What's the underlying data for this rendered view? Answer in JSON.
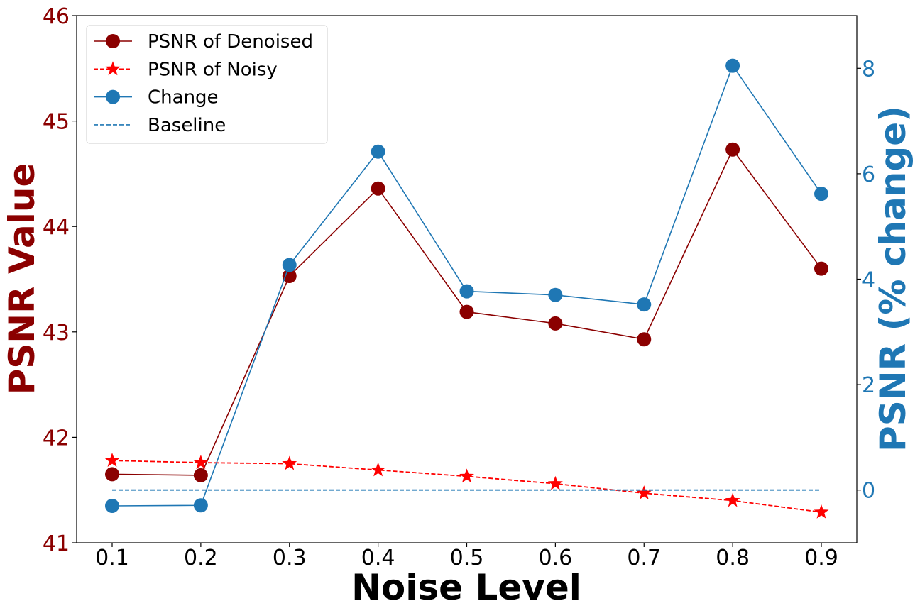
{
  "colors": {
    "denoised": "#8b0000",
    "noisy": "#ff0000",
    "change": "#1f77b4",
    "baseline": "#1f77b4",
    "left_axis_text": "#8b0000",
    "right_axis_text": "#1f77b4"
  },
  "chart_data": {
    "type": "line",
    "x": [
      0.1,
      0.2,
      0.3,
      0.4,
      0.5,
      0.6,
      0.7,
      0.8,
      0.9
    ],
    "x_tick_labels": [
      "0.1",
      "0.2",
      "0.3",
      "0.4",
      "0.5",
      "0.6",
      "0.7",
      "0.8",
      "0.9"
    ],
    "xlabel": "Noise Level",
    "ylabel_left": "PSNR Value",
    "ylabel_right": "PSNR (% change)",
    "ylim_left": [
      41,
      46
    ],
    "ylim_right": [
      -1,
      9
    ],
    "yticks_left": [
      41,
      42,
      43,
      44,
      45,
      46
    ],
    "yticks_right": [
      0,
      2,
      4,
      6,
      8
    ],
    "grid": false,
    "legend_position": "top-left",
    "series": [
      {
        "name": "PSNR of Denoised",
        "axis": "left",
        "style": "solid",
        "marker": "circle",
        "color": "#8b0000",
        "values": [
          41.65,
          41.64,
          43.53,
          44.36,
          43.19,
          43.08,
          42.93,
          44.73,
          43.6
        ]
      },
      {
        "name": "PSNR of Noisy",
        "axis": "left",
        "style": "dashed",
        "marker": "star",
        "color": "#ff0000",
        "values": [
          41.78,
          41.76,
          41.75,
          41.69,
          41.63,
          41.56,
          41.47,
          41.4,
          41.29
        ]
      },
      {
        "name": "Change",
        "axis": "right",
        "style": "solid",
        "marker": "circle",
        "color": "#1f77b4",
        "values": [
          -0.3,
          -0.29,
          4.27,
          6.42,
          3.77,
          3.7,
          3.52,
          8.05,
          5.62
        ]
      },
      {
        "name": "Baseline",
        "axis": "right",
        "style": "dashed",
        "marker": "none",
        "color": "#1f77b4",
        "values": [
          0,
          0,
          0,
          0,
          0,
          0,
          0,
          0,
          0
        ]
      }
    ]
  }
}
